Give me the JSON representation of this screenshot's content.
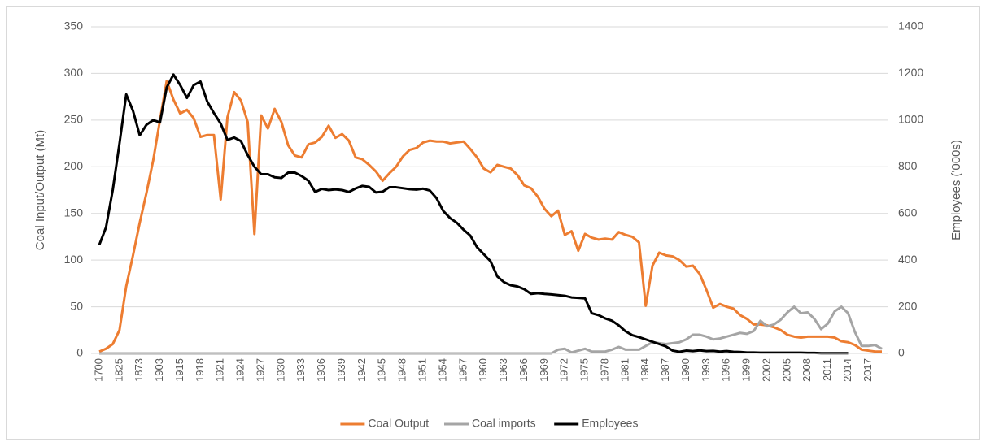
{
  "chart_data": {
    "type": "line",
    "y_label": "Coal Input/Output (Mt)",
    "y2_label": "Employees ('000s)",
    "categories": [
      "1700",
      null,
      null,
      "1825",
      null,
      null,
      "1873",
      null,
      null,
      "1903",
      null,
      null,
      "1915",
      null,
      null,
      "1918",
      null,
      null,
      "1921",
      null,
      null,
      "1924",
      null,
      null,
      "1927",
      null,
      null,
      "1930",
      null,
      null,
      "1933",
      null,
      null,
      "1936",
      null,
      null,
      "1939",
      null,
      null,
      "1942",
      null,
      null,
      "1945",
      null,
      null,
      "1948",
      null,
      null,
      "1951",
      null,
      null,
      "1954",
      null,
      null,
      "1957",
      null,
      null,
      "1960",
      null,
      null,
      "1963",
      null,
      null,
      "1966",
      null,
      null,
      "1969",
      null,
      null,
      "1972",
      null,
      null,
      "1975",
      null,
      null,
      "1978",
      null,
      null,
      "1981",
      null,
      null,
      "1984",
      null,
      null,
      "1987",
      null,
      null,
      "1990",
      null,
      null,
      "1993",
      null,
      null,
      "1996",
      null,
      null,
      "1999",
      null,
      null,
      "2002",
      null,
      null,
      "2005",
      null,
      null,
      "2008",
      null,
      null,
      "2011",
      null,
      null,
      "2014",
      null,
      null,
      "2017",
      null,
      null
    ],
    "series": [
      {
        "name": "Coal Output",
        "color": "#ed7d31",
        "values": [
          2,
          5,
          10,
          25,
          72,
          105,
          140,
          172,
          207,
          250,
          292,
          272,
          257,
          261,
          252,
          232,
          234,
          234,
          165,
          253,
          280,
          271,
          248,
          128,
          255,
          241,
          262,
          248,
          223,
          212,
          210,
          224,
          226,
          232,
          244,
          231,
          235,
          228,
          210,
          208,
          202,
          195,
          185,
          193,
          200,
          211,
          218,
          220,
          226,
          228,
          227,
          227,
          225,
          226,
          227,
          219,
          210,
          198,
          194,
          202,
          200,
          198,
          191,
          180,
          177,
          168,
          155,
          147,
          153,
          127,
          131,
          110,
          128,
          124,
          122,
          123,
          122,
          130,
          127,
          125,
          119,
          51,
          94,
          108,
          105,
          104,
          100,
          93,
          94,
          85,
          68,
          49,
          53,
          50,
          48,
          41,
          37,
          31,
          31,
          30,
          28,
          25,
          20,
          18,
          17,
          18,
          18,
          18,
          18,
          17,
          13,
          12,
          9,
          4,
          3,
          2,
          2
        ]
      },
      {
        "name": "Coal imports",
        "color": "#a5a5a5",
        "values": [
          0,
          0,
          0,
          0,
          0,
          0,
          0,
          0,
          0,
          0,
          0,
          0,
          0,
          0,
          0,
          0,
          0,
          0,
          0,
          0,
          0,
          0,
          0,
          0,
          0,
          0,
          0,
          0,
          0,
          0,
          0,
          0,
          0,
          0,
          0,
          0,
          0,
          0,
          0,
          0,
          0,
          0,
          0,
          0,
          0,
          0,
          0,
          0,
          0,
          0,
          0,
          0,
          0,
          0,
          0,
          0,
          0,
          0,
          0,
          0,
          0,
          0,
          0,
          0,
          0,
          0,
          0,
          0,
          4,
          5,
          1,
          3,
          5,
          2,
          2,
          2,
          4,
          7,
          4,
          4,
          4,
          8,
          12,
          11,
          10,
          11,
          12,
          15,
          20,
          20,
          18,
          15,
          16,
          18,
          20,
          22,
          21,
          24,
          35,
          29,
          31,
          36,
          44,
          50,
          43,
          44,
          37,
          26,
          32,
          45,
          50,
          43,
          23,
          8,
          8,
          9,
          5
        ]
      },
      {
        "name": "Employees",
        "color": "#000000",
        "axis": "y2",
        "values": [
          465,
          540,
          700,
          900,
          1110,
          1040,
          935,
          980,
          1000,
          990,
          1140,
          1195,
          1150,
          1095,
          1150,
          1165,
          1080,
          1030,
          985,
          915,
          925,
          910,
          850,
          800,
          768,
          768,
          755,
          752,
          775,
          775,
          760,
          740,
          692,
          705,
          700,
          703,
          700,
          692,
          707,
          718,
          714,
          690,
          693,
          712,
          712,
          708,
          704,
          702,
          706,
          698,
          665,
          610,
          580,
          560,
          530,
          505,
          455,
          425,
          395,
          330,
          305,
          292,
          287,
          275,
          255,
          258,
          255,
          253,
          250,
          247,
          240,
          238,
          236,
          172,
          164,
          150,
          140,
          120,
          95,
          78,
          70,
          60,
          50,
          40,
          30,
          12,
          7,
          12,
          10,
          13,
          10,
          11,
          8,
          10,
          7,
          6,
          4,
          4,
          3,
          3,
          3,
          3,
          3,
          3,
          3,
          2,
          2,
          1,
          1,
          1,
          1,
          1,
          null,
          null,
          null,
          null,
          null
        ]
      }
    ],
    "ylim": [
      0,
      350
    ],
    "yticks": [
      0,
      50,
      100,
      150,
      200,
      250,
      300,
      350
    ],
    "y2lim": [
      0,
      1400
    ],
    "y2ticks": [
      0,
      200,
      400,
      600,
      800,
      1000,
      1200,
      1400
    ],
    "grid": true,
    "legend": "bottom"
  }
}
